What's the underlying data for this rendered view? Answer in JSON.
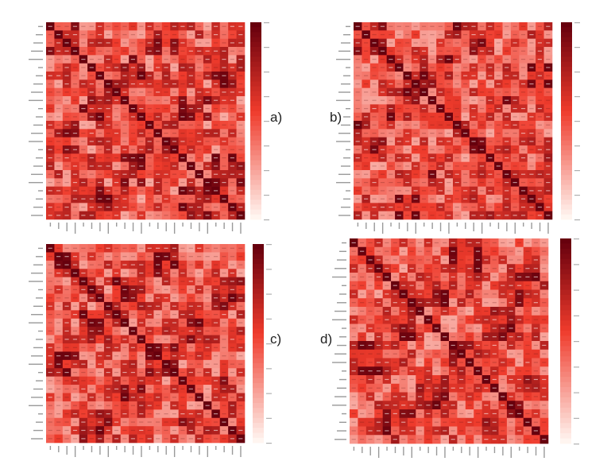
{
  "colors": {
    "low": "#fff5f0",
    "mid": "#ef3b2c",
    "high": "#67000d"
  },
  "chart_data": [
    {
      "type": "heatmap",
      "label": "a)",
      "cells": 24,
      "range": [
        -1,
        1
      ],
      "seed": 11
    },
    {
      "type": "heatmap",
      "label": "b)",
      "cells": 24,
      "range": [
        -1,
        1
      ],
      "seed": 23
    },
    {
      "type": "heatmap",
      "label": "c)",
      "cells": 24,
      "range": [
        -1,
        1
      ],
      "seed": 37
    },
    {
      "type": "heatmap",
      "label": "d)",
      "cells": 24,
      "range": [
        -1,
        1
      ],
      "seed": 53
    }
  ]
}
